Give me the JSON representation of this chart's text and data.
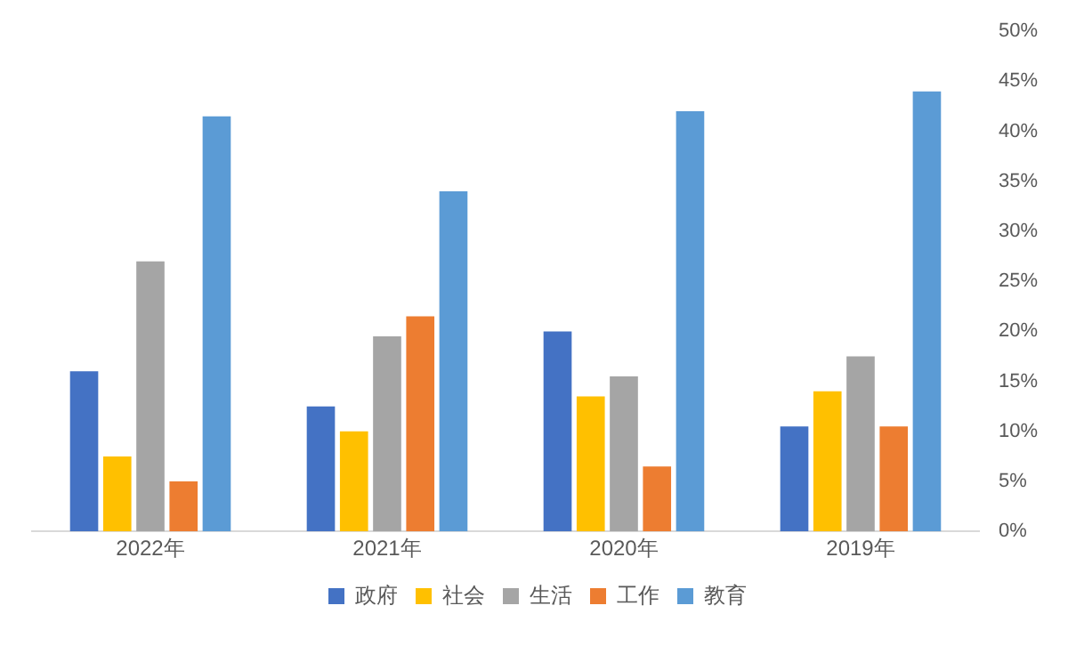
{
  "chart_data": {
    "type": "bar",
    "categories": [
      "2022年",
      "2021年",
      "2020年",
      "2019年"
    ],
    "series": [
      {
        "name": "政府",
        "color": "#4472c4",
        "values": [
          16,
          12.5,
          20,
          10.5
        ]
      },
      {
        "name": "社会",
        "color": "#ffc000",
        "values": [
          7.5,
          10,
          13.5,
          14
        ]
      },
      {
        "name": "生活",
        "color": "#a5a5a5",
        "values": [
          27,
          19.5,
          15.5,
          17.5
        ]
      },
      {
        "name": "工作",
        "color": "#ed7d31",
        "values": [
          5,
          21.5,
          6.5,
          10.5
        ]
      },
      {
        "name": "教育",
        "color": "#5b9bd5",
        "values": [
          41.5,
          34,
          42,
          44
        ]
      }
    ],
    "ylim": [
      0,
      50
    ],
    "yticks": [
      {
        "value": 0,
        "label": "0%"
      },
      {
        "value": 5,
        "label": "5%"
      },
      {
        "value": 10,
        "label": "10%"
      },
      {
        "value": 15,
        "label": "15%"
      },
      {
        "value": 20,
        "label": "20%"
      },
      {
        "value": 25,
        "label": "25%"
      },
      {
        "value": 30,
        "label": "30%"
      },
      {
        "value": 35,
        "label": "35%"
      },
      {
        "value": 40,
        "label": "40%"
      },
      {
        "value": 45,
        "label": "45%"
      },
      {
        "value": 50,
        "label": "50%"
      }
    ],
    "grid": false,
    "legend": "bottom"
  }
}
